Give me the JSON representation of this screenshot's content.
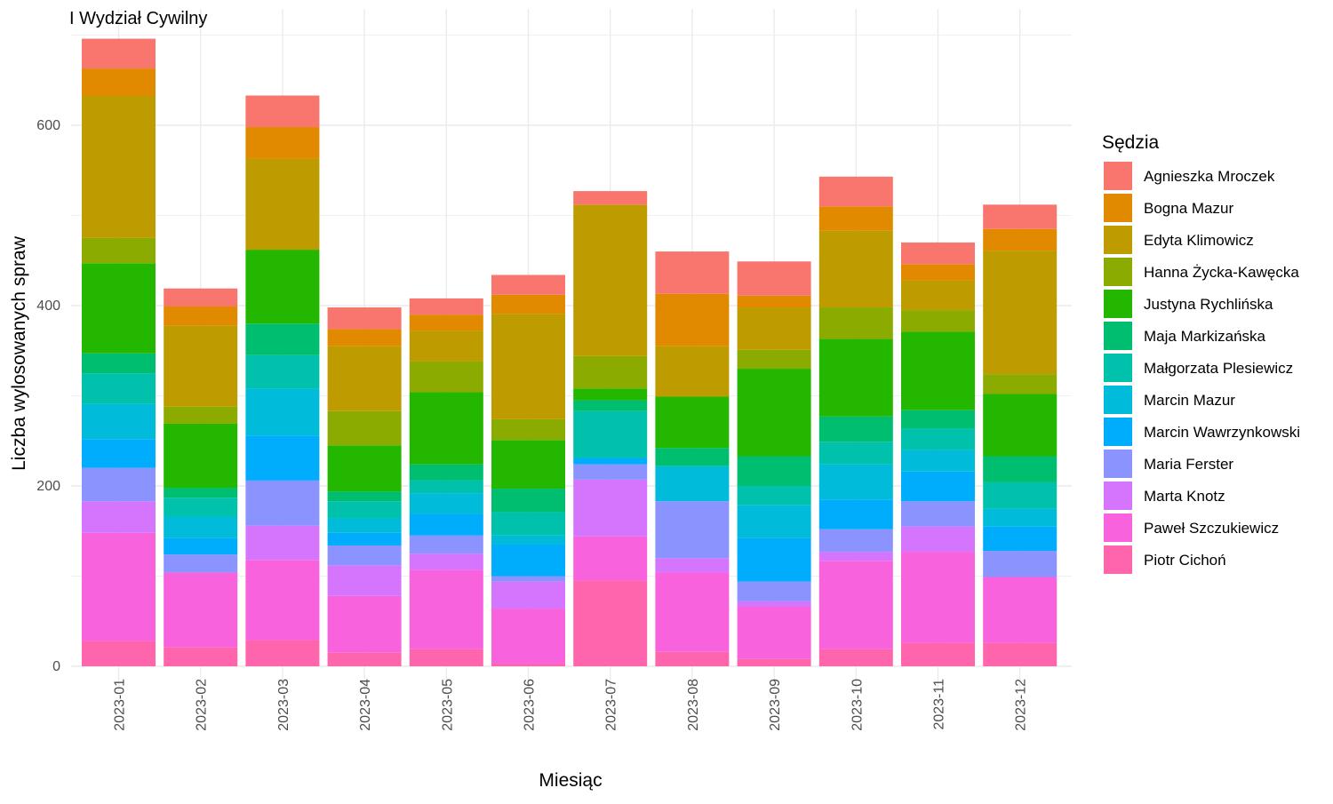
{
  "chart_data": {
    "type": "bar",
    "stacked": true,
    "title": "I Wydział Cywilny",
    "xlabel": "Miesiąc",
    "ylabel": "Liczba wylosowanych spraw",
    "ylim": [
      0,
      700
    ],
    "yticks": [
      0,
      200,
      400,
      600
    ],
    "grid": true,
    "legend_title": "Sędzia",
    "legend_position": "right",
    "categories": [
      "2023-01",
      "2023-02",
      "2023-03",
      "2023-04",
      "2023-05",
      "2023-06",
      "2023-07",
      "2023-08",
      "2023-09",
      "2023-10",
      "2023-11",
      "2023-12"
    ],
    "series": [
      {
        "name": "Agnieszka Mroczek",
        "color": "#F8766D",
        "values": [
          33,
          20,
          35,
          24,
          18,
          22,
          15,
          47,
          38,
          33,
          24,
          27
        ]
      },
      {
        "name": "Bogna Mazur",
        "color": "#E18A00",
        "values": [
          30,
          21,
          35,
          19,
          18,
          21,
          0,
          58,
          13,
          27,
          18,
          24
        ]
      },
      {
        "name": "Edyta Klimowicz",
        "color": "#BE9C00",
        "values": [
          158,
          90,
          101,
          72,
          34,
          117,
          168,
          56,
          47,
          85,
          33,
          137
        ]
      },
      {
        "name": "Hanna Życka-Kawęcka",
        "color": "#8CAB00",
        "values": [
          28,
          19,
          0,
          38,
          34,
          23,
          36,
          0,
          21,
          35,
          24,
          22
        ]
      },
      {
        "name": "Justyna Rychlińska",
        "color": "#24B700",
        "values": [
          100,
          71,
          82,
          51,
          80,
          54,
          13,
          57,
          97,
          86,
          87,
          69
        ]
      },
      {
        "name": "Maja Markizańska",
        "color": "#00BE70",
        "values": [
          22,
          11,
          35,
          11,
          18,
          26,
          12,
          20,
          33,
          28,
          20,
          29
        ]
      },
      {
        "name": "Małgorzata Plesiewicz",
        "color": "#00C1AB",
        "values": [
          34,
          21,
          37,
          19,
          14,
          26,
          52,
          0,
          21,
          25,
          24,
          29
        ]
      },
      {
        "name": "Marcin Mazur",
        "color": "#00BBDA",
        "values": [
          39,
          24,
          52,
          16,
          23,
          10,
          0,
          39,
          37,
          39,
          24,
          20
        ]
      },
      {
        "name": "Marcin Wawrzynkowski",
        "color": "#00ACFC",
        "values": [
          32,
          18,
          50,
          14,
          24,
          35,
          7,
          0,
          48,
          33,
          33,
          27
        ]
      },
      {
        "name": "Maria Ferster",
        "color": "#8B93FF",
        "values": [
          37,
          20,
          50,
          22,
          20,
          6,
          17,
          63,
          22,
          25,
          28,
          29
        ]
      },
      {
        "name": "Marta Knotz",
        "color": "#D575FE",
        "values": [
          35,
          0,
          38,
          34,
          18,
          30,
          63,
          16,
          6,
          10,
          28,
          0
        ]
      },
      {
        "name": "Paweł Szczukiewicz",
        "color": "#F962DD",
        "values": [
          120,
          83,
          89,
          63,
          88,
          61,
          49,
          88,
          58,
          98,
          101,
          73
        ]
      },
      {
        "name": "Piotr Cichoń",
        "color": "#FF65AC",
        "values": [
          28,
          21,
          29,
          15,
          19,
          3,
          95,
          16,
          8,
          19,
          26,
          26
        ]
      }
    ]
  }
}
